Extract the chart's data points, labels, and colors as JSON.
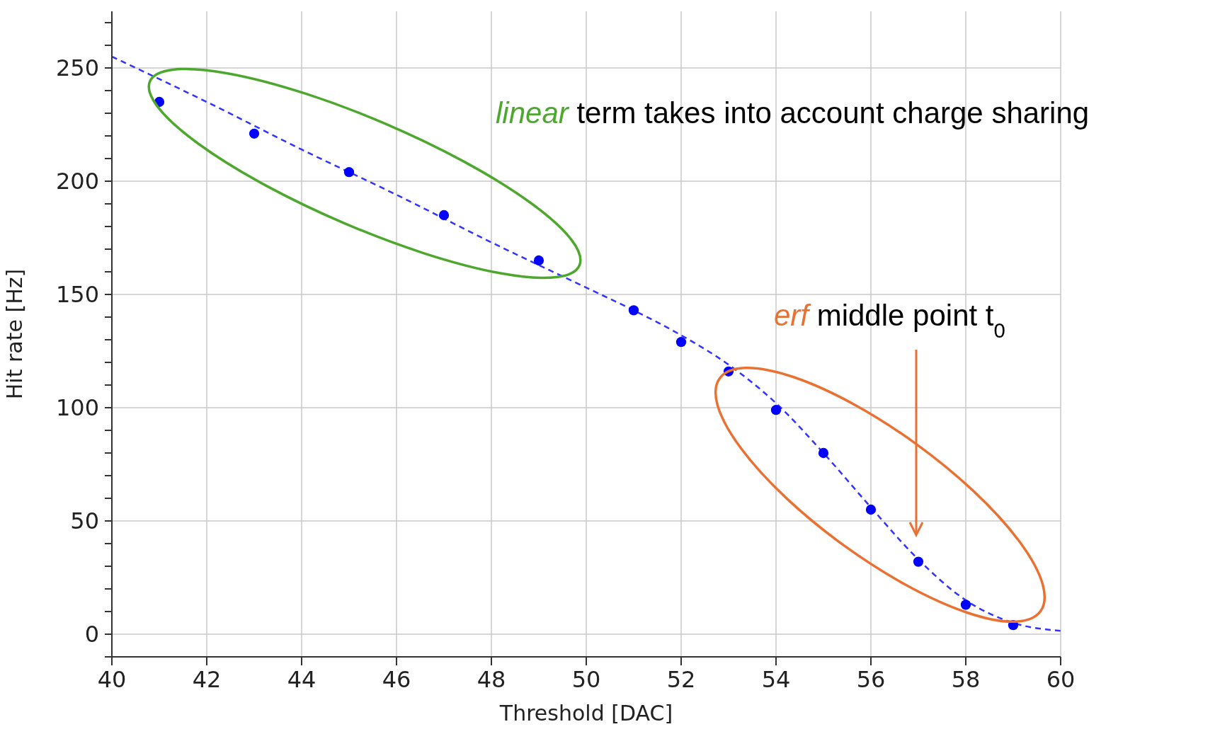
{
  "chart_data": {
    "type": "scatter",
    "xlabel": "Threshold [DAC]",
    "ylabel": "Hit rate [Hz]",
    "xlim": [
      40,
      60
    ],
    "xticks": [
      40,
      42,
      44,
      46,
      48,
      50,
      52,
      54,
      56,
      58,
      60
    ],
    "ylim": [
      -10,
      275
    ],
    "yticks": [
      {
        "value": -10,
        "label": null
      },
      0,
      {
        "value": 10,
        "label": null
      },
      {
        "value": 20,
        "label": null
      },
      {
        "value": 30,
        "label": null
      },
      {
        "value": 40,
        "label": null
      },
      50,
      {
        "value": 60,
        "label": null
      },
      {
        "value": 70,
        "label": null
      },
      {
        "value": 80,
        "label": null
      },
      {
        "value": 90,
        "label": null
      },
      100,
      {
        "value": 110,
        "label": null
      },
      {
        "value": 120,
        "label": null
      },
      {
        "value": 130,
        "label": null
      },
      {
        "value": 140,
        "label": null
      },
      150,
      {
        "value": 160,
        "label": null
      },
      {
        "value": 170,
        "label": null
      },
      {
        "value": 180,
        "label": null
      },
      {
        "value": 190,
        "label": null
      },
      200,
      {
        "value": 210,
        "label": null
      },
      {
        "value": 220,
        "label": null
      },
      {
        "value": 230,
        "label": null
      },
      {
        "value": 240,
        "label": null
      },
      250,
      {
        "value": 260,
        "label": null
      },
      {
        "value": 270,
        "label": null
      }
    ],
    "grid": true,
    "legend": false,
    "series": [
      {
        "marker": "circle",
        "color": "#0000ff",
        "x": [
          41,
          43,
          45,
          47,
          49,
          51,
          52,
          53,
          54,
          55,
          56,
          57,
          58,
          59
        ],
        "values": [
          235,
          221,
          204,
          185,
          165,
          143,
          129,
          116,
          99,
          80,
          55,
          32,
          13,
          4
        ]
      },
      {
        "type": "line",
        "marker": "none",
        "line_style": "dashed",
        "color": "#3333ff",
        "x": [
          40,
          42,
          44,
          46,
          48,
          50,
          51,
          52,
          53,
          54,
          55,
          56,
          57,
          58,
          59,
          60
        ],
        "values": [
          255,
          235,
          214,
          194,
          173,
          153,
          143,
          132,
          119,
          102,
          80,
          56,
          33,
          15,
          5,
          1.5
        ]
      }
    ],
    "annotations": [
      "linear",
      "term takes into account charge sharing",
      "erf",
      "middle point t$_{0}$"
    ]
  }
}
